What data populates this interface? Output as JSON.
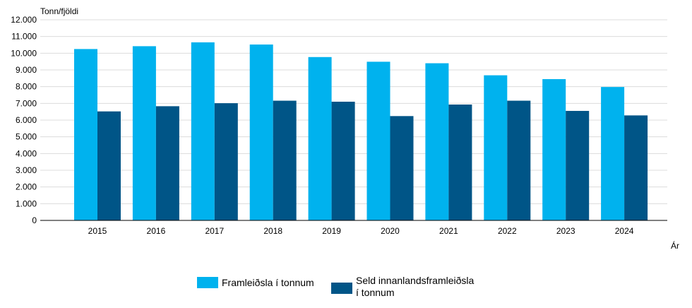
{
  "chart_data": {
    "type": "bar",
    "ylabel": "Tonn/fjöldi",
    "xlabel": "Ár",
    "categories": [
      "2015",
      "2016",
      "2017",
      "2018",
      "2019",
      "2020",
      "2021",
      "2022",
      "2023",
      "2024"
    ],
    "series": [
      {
        "name": "Framleiðsla í tonnum",
        "color": "#00b2ee",
        "values": [
          10250,
          10420,
          10650,
          10520,
          9770,
          9490,
          9400,
          8680,
          8450,
          7980
        ]
      },
      {
        "name_lines": [
          "Seld innanlandsframleiðsla",
          "í tonnum"
        ],
        "color": "#005587",
        "values": [
          6520,
          6830,
          7010,
          7160,
          7100,
          6240,
          6930,
          7160,
          6550,
          6280
        ]
      }
    ],
    "ylim": [
      0,
      12000
    ],
    "yticks": [
      0,
      1000,
      2000,
      3000,
      4000,
      5000,
      6000,
      7000,
      8000,
      9000,
      10000,
      11000,
      12000
    ],
    "ytick_labels": [
      "0",
      "1.000",
      "2.000",
      "3.000",
      "4.000",
      "5.000",
      "6.000",
      "7.000",
      "8.000",
      "9.000",
      "10.000",
      "11.000",
      "12.000"
    ],
    "grid": true,
    "legend_position": "bottom"
  }
}
